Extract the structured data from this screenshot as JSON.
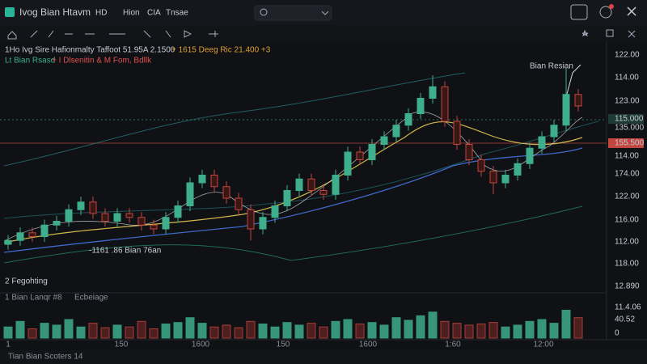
{
  "top_bar": {
    "logo": "Ivog Bian Htavm",
    "items": [
      "HD",
      "Hion",
      "CIA",
      "Tnsae"
    ]
  },
  "legend": {
    "line1": "1Ho Ivg Sire Hafionmalty  Taffoot 51.95A 2.1500",
    "line1_extra": "+ 1615 Deeg Ric 21.400 +3",
    "line2": "Lt Bian Rsasd",
    "line2_extra": "+ I Dlsenitin & M Fom, Bdllk"
  },
  "annotations": {
    "top": "Bian Resian",
    "mid": "-1161 .86 Bian 76an",
    "left": "2 Fegohting"
  },
  "price_labels": [
    "122.00",
    "114.00",
    "123.00",
    "115.000",
    "135.000",
    "155.500",
    "114.00",
    "174.00",
    "122.00",
    "116.00",
    "112.00",
    "118.00",
    "12.890"
  ],
  "volume_labels": [
    "11.4.06",
    "40.52",
    "0"
  ],
  "volume_legend": {
    "name": "1 Bian Lanqr #8",
    "extra": "Ecbeiage"
  },
  "time_labels": [
    "1",
    "150",
    "1600",
    "150",
    "1600",
    "1:60",
    "12:00"
  ],
  "footer": "Tian Bian Scoters 14",
  "chart_data": {
    "type": "candlestick",
    "ylim": [
      100,
      130
    ],
    "up_color": "#3fae8c",
    "down_color": "#c2453f",
    "open": [
      104,
      104.5,
      105.5,
      105,
      106.5,
      107,
      108.5,
      109.5,
      108,
      107,
      108,
      107.5,
      106.5,
      106,
      107.5,
      109,
      112,
      113,
      111.5,
      110,
      108.5,
      106,
      107.5,
      109,
      111,
      112.5,
      111,
      110.5,
      113,
      116,
      115,
      117,
      118,
      119.5,
      121,
      123,
      124.5,
      120,
      117,
      115,
      113.5,
      112,
      113,
      114.5,
      116.5,
      118,
      119.5,
      123.5
    ],
    "high": [
      105.2,
      106.2,
      106.2,
      107.2,
      107.7,
      109.2,
      110.2,
      110.2,
      108.7,
      108.7,
      108.7,
      108.2,
      107.2,
      108.2,
      109.7,
      112.7,
      113.7,
      113.7,
      112.2,
      110.7,
      109.2,
      108.2,
      109.7,
      111.7,
      113.2,
      113.2,
      111.7,
      113.7,
      116.7,
      116.7,
      117.7,
      118.7,
      120.2,
      121.7,
      123.7,
      126,
      125.2,
      120.7,
      117.7,
      115.7,
      114.2,
      113.7,
      115.2,
      117.2,
      118.7,
      120.2,
      127,
      124.2
    ],
    "low": [
      103.3,
      103.8,
      104.3,
      104.3,
      105.8,
      106.3,
      107.8,
      107.3,
      106.3,
      106.3,
      106.8,
      105.8,
      105.3,
      105.3,
      106.8,
      108.3,
      111.3,
      110.8,
      109.3,
      107.8,
      104.5,
      105.3,
      106.8,
      108.3,
      110.3,
      110.3,
      109.8,
      109.8,
      112.3,
      114.3,
      114.3,
      116.3,
      117.3,
      118.8,
      120.3,
      122.3,
      119.3,
      116.3,
      114.3,
      112.8,
      110.5,
      111.3,
      112.3,
      113.8,
      115.8,
      117.3,
      118.8,
      121.3
    ],
    "close": [
      104.5,
      105.5,
      105,
      106.5,
      107,
      108.5,
      109.5,
      108,
      107,
      108,
      107.5,
      106.5,
      106,
      107.5,
      109,
      112,
      113,
      111.5,
      110,
      108.5,
      106,
      107.5,
      109,
      111,
      112.5,
      111,
      110.5,
      113,
      116,
      115,
      117,
      118,
      119.5,
      121,
      123,
      124.5,
      120,
      117,
      115,
      113.5,
      112,
      113,
      114.5,
      116.5,
      118,
      119.5,
      123.5,
      122
    ],
    "volume_ylim": [
      0,
      100
    ],
    "volume": [
      30,
      45,
      25,
      40,
      35,
      50,
      30,
      40,
      28,
      35,
      30,
      45,
      25,
      38,
      42,
      55,
      40,
      30,
      35,
      28,
      45,
      38,
      30,
      42,
      35,
      40,
      30,
      45,
      50,
      38,
      42,
      35,
      55,
      48,
      60,
      70,
      45,
      40,
      35,
      38,
      42,
      30,
      35,
      45,
      50,
      40,
      75,
      55
    ]
  }
}
